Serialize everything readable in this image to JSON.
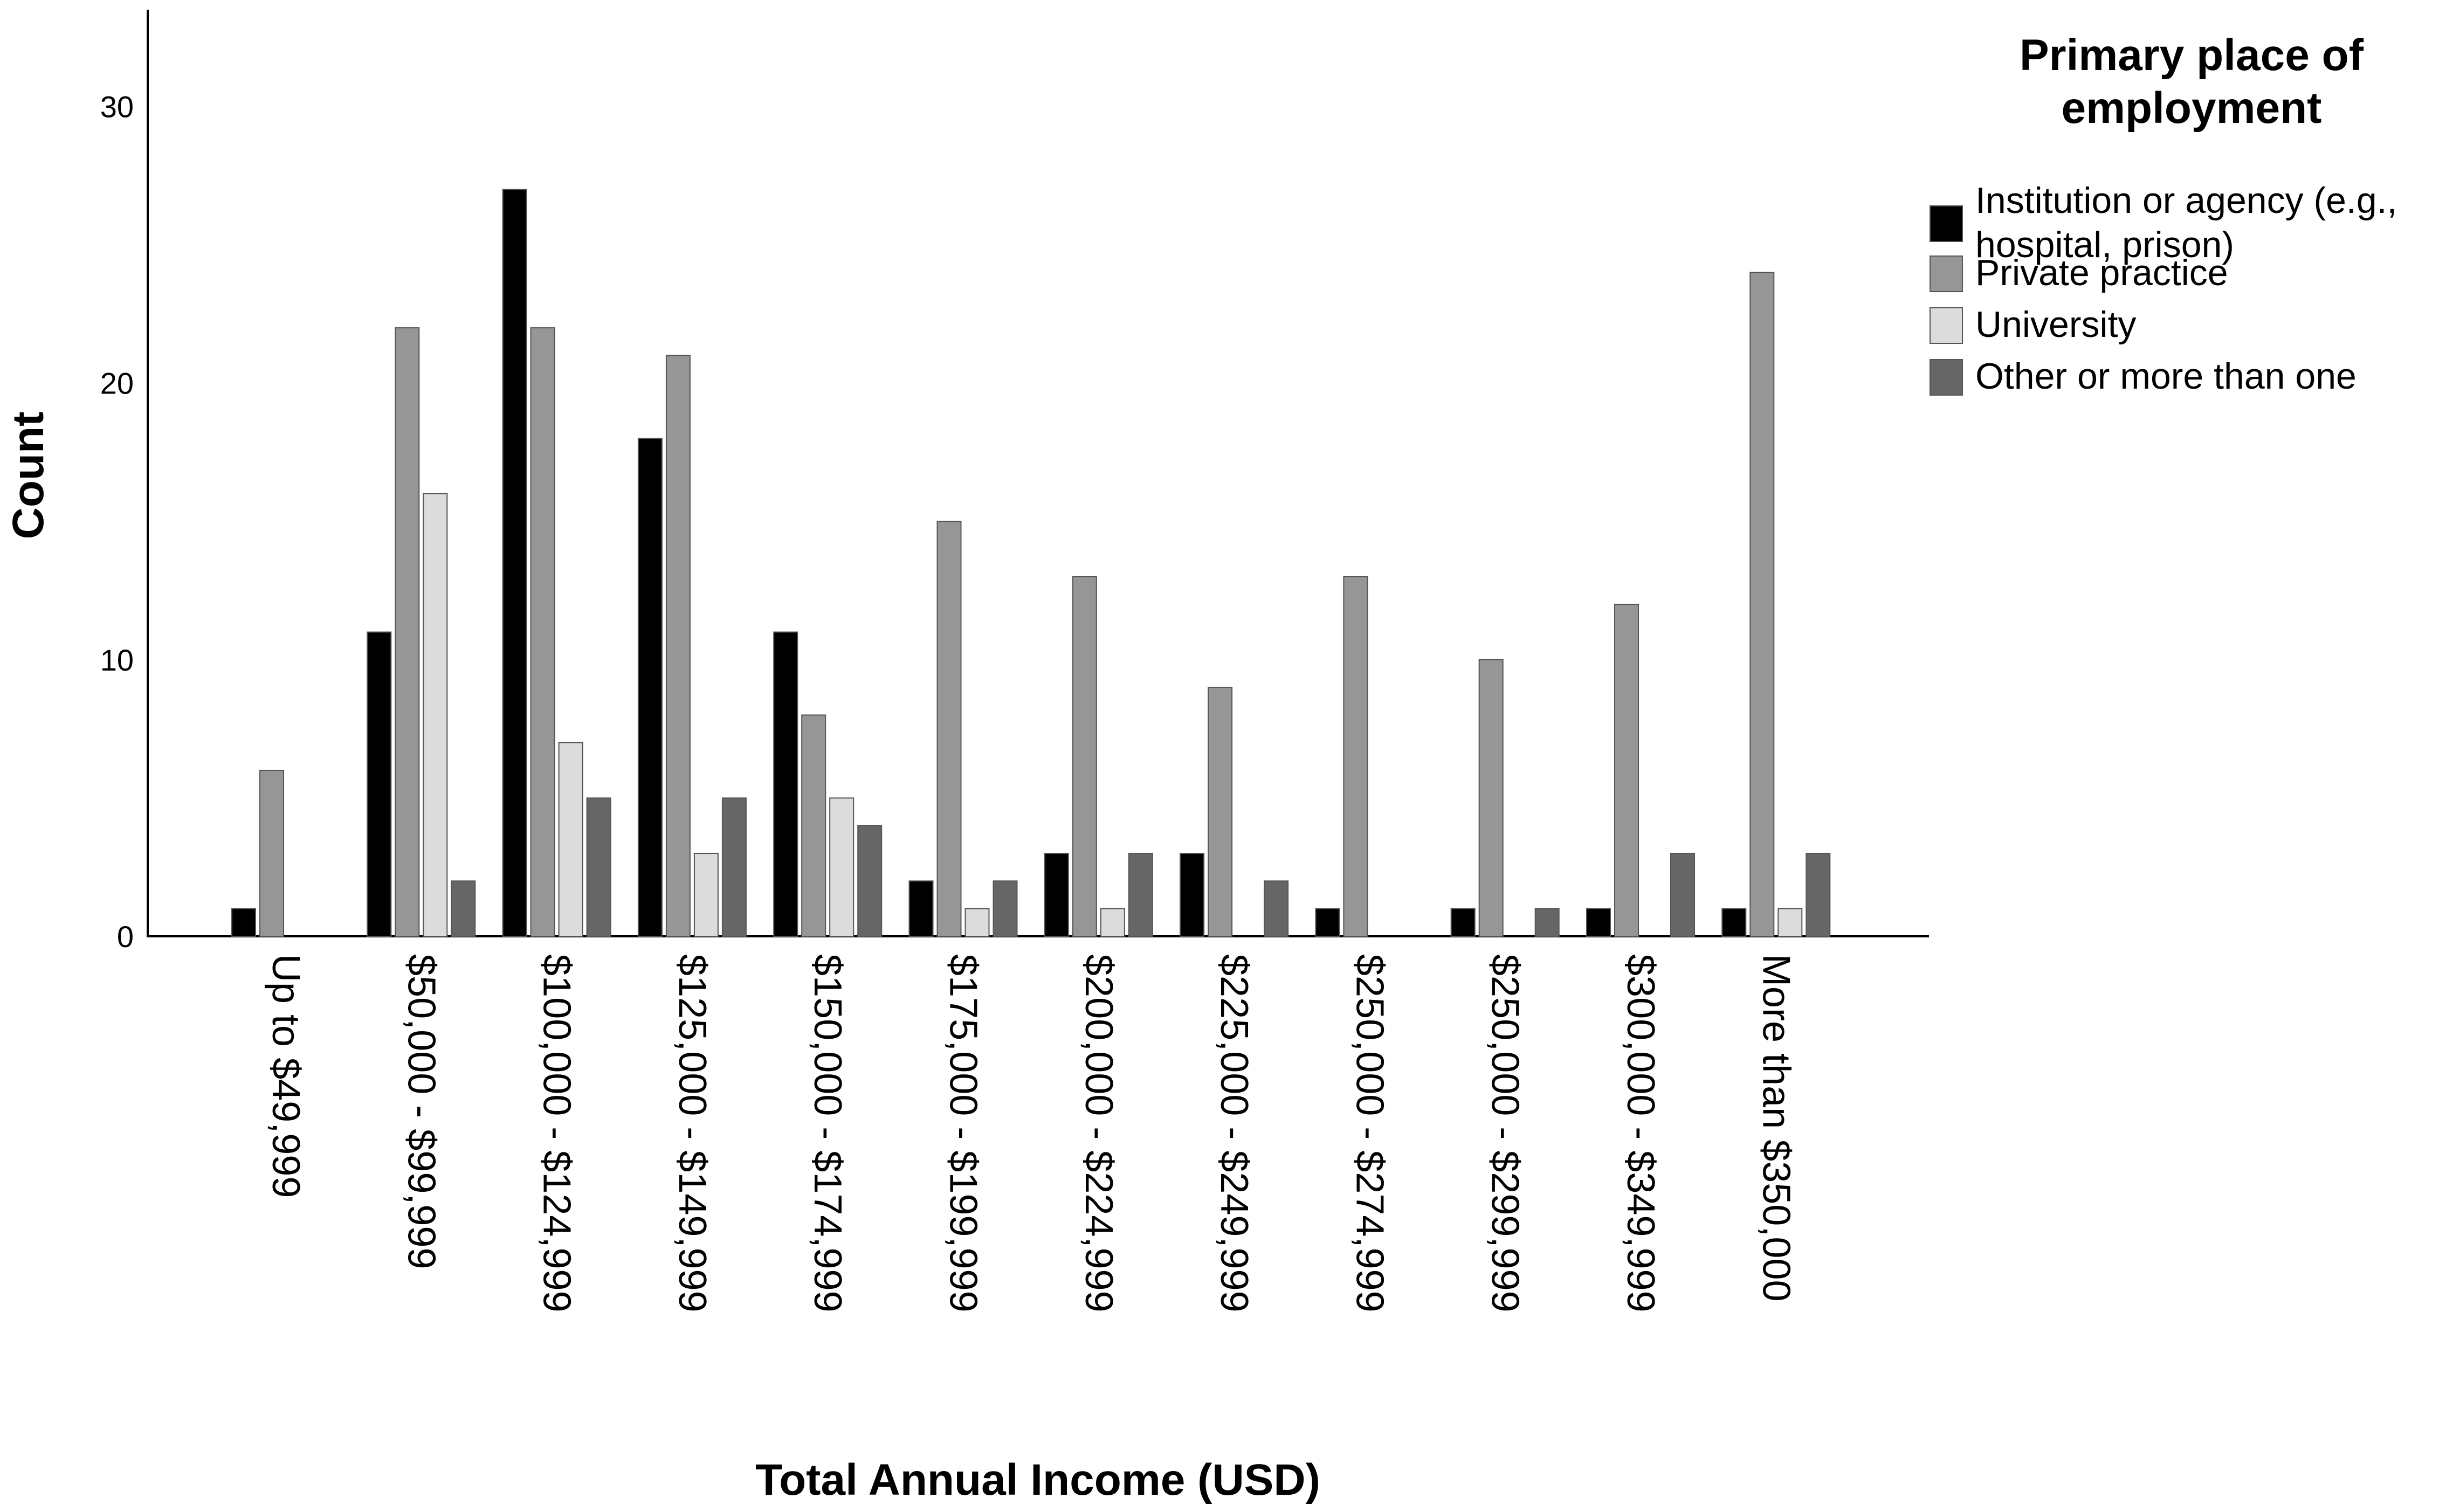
{
  "chart_data": {
    "type": "bar",
    "xlabel": "Total Annual Income (USD)",
    "ylabel": "Count",
    "ylim": [
      0,
      33.5
    ],
    "yticks": [
      0,
      10,
      20,
      30
    ],
    "grid": false,
    "legend_position": "top-right",
    "legend_title": "Primary place of employment",
    "categories": [
      "Up to $49,999",
      "$50,000 - $99,999",
      "$100,000 - $124,999",
      "$125,000 - $149,999",
      "$150,000 - $174,999",
      "$175,000 - $199,999",
      "$200,000 - $224,999",
      "$225,000 - $249,999",
      "$250,000 - $274,999",
      "$250,000 - $299,999",
      "$300,000 - $349,999",
      "More than $350,000"
    ],
    "series": [
      {
        "name": "Institution or agency (e.g., hospital, prison)",
        "color": "#000000",
        "values": [
          1,
          11,
          27,
          18,
          11,
          2,
          3,
          3,
          1,
          1,
          1,
          1
        ]
      },
      {
        "name": "Private practice",
        "color": "#969696",
        "values": [
          6,
          22,
          22,
          21,
          8,
          15,
          13,
          9,
          13,
          10,
          12,
          24
        ]
      },
      {
        "name": "University",
        "color": "#dcdcdc",
        "values": [
          0,
          16,
          7,
          3,
          5,
          1,
          1,
          0,
          0,
          0,
          0,
          1
        ]
      },
      {
        "name": "Other or more than one",
        "color": "#666666",
        "values": [
          0,
          2,
          5,
          5,
          4,
          2,
          3,
          2,
          0,
          1,
          3,
          3
        ]
      }
    ],
    "legend_labels": [
      [
        "Institution or agency (e.g.,",
        "hospital, prison)"
      ],
      [
        "Private practice"
      ],
      [
        "University"
      ],
      [
        "Other or more than one"
      ]
    ]
  }
}
